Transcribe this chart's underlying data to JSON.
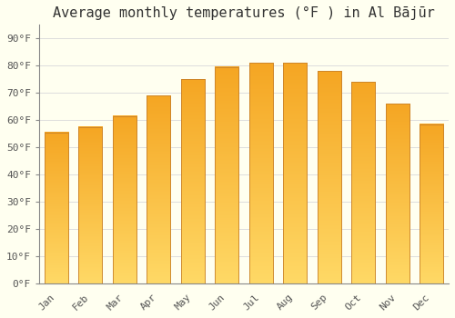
{
  "title": "Average monthly temperatures (°F ) in Al Bājūr",
  "months": [
    "Jan",
    "Feb",
    "Mar",
    "Apr",
    "May",
    "Jun",
    "Jul",
    "Aug",
    "Sep",
    "Oct",
    "Nov",
    "Dec"
  ],
  "values": [
    55.5,
    57.5,
    61.5,
    69,
    75,
    79.5,
    81,
    81,
    78,
    74,
    66,
    58.5
  ],
  "bar_color_top": "#F5A623",
  "bar_color_bottom": "#FFD966",
  "bar_edge_color": "#C8802A",
  "background_color": "#FFFFF0",
  "grid_color": "#DDDDDD",
  "ylim": [
    0,
    95
  ],
  "yticks": [
    0,
    10,
    20,
    30,
    40,
    50,
    60,
    70,
    80,
    90
  ],
  "title_fontsize": 11,
  "tick_fontsize": 8,
  "font_family": "monospace"
}
